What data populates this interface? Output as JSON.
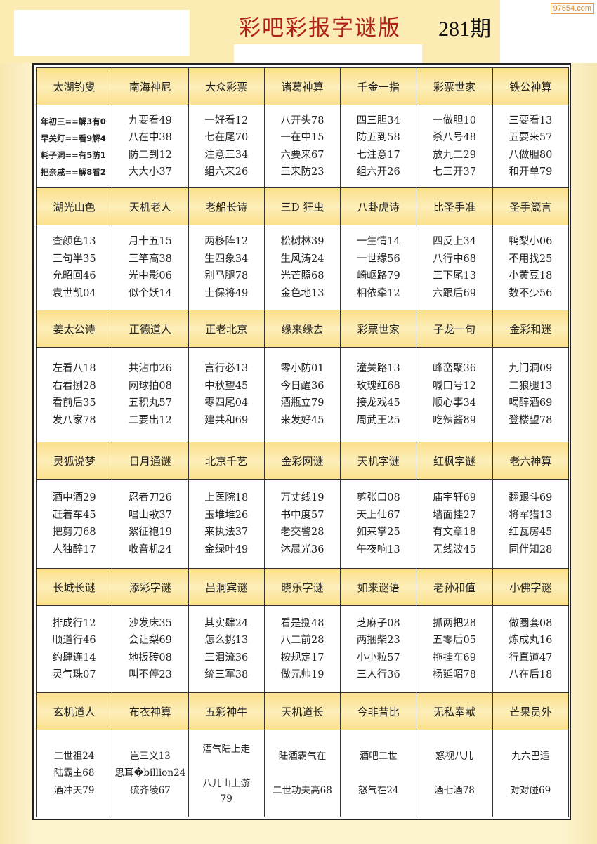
{
  "header": {
    "title": "彩吧彩报字谜版",
    "issue": "281期",
    "watermark": "97654.com"
  },
  "blocks": [
    {
      "headers": [
        "太湖钓叟",
        "南海神尼",
        "大众彩票",
        "诸葛神算",
        "千金一指",
        "彩票世家",
        "铁公神算"
      ],
      "cells": [
        [
          "年初三==解3有0",
          "早关灯==看9解4",
          "耗子洞==有5防1",
          "把亲戚==解8看2"
        ],
        [
          "九要看49",
          "八在中38",
          "防二到12",
          "大大小37"
        ],
        [
          "一好看12",
          "七在尾70",
          "注意三34",
          "组六来26"
        ],
        [
          "八开头78",
          "一在中15",
          "六要来67",
          "三来防23"
        ],
        [
          "四三胆34",
          "防五到58",
          "七注意17",
          "组六开26"
        ],
        [
          "一做胆10",
          "杀八号48",
          "放九二29",
          "七三开37"
        ],
        [
          "三要看13",
          "五要来57",
          "八做胆80",
          "和开单79"
        ]
      ]
    },
    {
      "headers": [
        "湖光山色",
        "天机老人",
        "老船长诗",
        "三D 狂虫",
        "八卦虎诗",
        "比圣手准",
        "圣手箴言"
      ],
      "cells": [
        [
          "查颜色13",
          "三句半35",
          "允昭回46",
          "袁世凯04"
        ],
        [
          "月十五15",
          "三竿高38",
          "光中影06",
          "似个妖14"
        ],
        [
          "两移阵12",
          "生四象34",
          "别马腿78",
          "士保将49"
        ],
        [
          "松树林39",
          "生风涛24",
          "光芒照68",
          "金色地13"
        ],
        [
          "一生情14",
          "一世缘56",
          "崎岖路79",
          "相依牵12"
        ],
        [
          "四反上34",
          "八行中68",
          "三下尾13",
          "六跟后69"
        ],
        [
          "鸭梨小06",
          "不用找25",
          "小黄豆18",
          "数不少56"
        ]
      ]
    },
    {
      "headers": [
        "姜太公诗",
        "正德道人",
        "正老北京",
        "缘来缘去",
        "彩票世家",
        "子龙一句",
        "金彩和迷"
      ],
      "cells": [
        [
          "左看八18",
          "右看捌28",
          "看前后35",
          "发八家78"
        ],
        [
          "共沾巾26",
          "网球拍08",
          "五积丸57",
          "二要出12"
        ],
        [
          "言行必13",
          "中秋望45",
          "零四尾04",
          "建共和69"
        ],
        [
          "零小防01",
          "今日醒36",
          "酒瓶立79",
          "来发好45"
        ],
        [
          "潼关路13",
          "玫瑰红68",
          "接龙戏45",
          "周武王25"
        ],
        [
          "峰峦聚36",
          "喊口号12",
          "顺心事34",
          "吃辣酱89"
        ],
        [
          "九门洞09",
          "二狼腿13",
          "喝醉酒69",
          "登楼望78"
        ]
      ]
    },
    {
      "headers": [
        "灵狐说梦",
        "日月通谜",
        "北京千艺",
        "金彩网谜",
        "天机字谜",
        "红枫字谜",
        "老六神算"
      ],
      "cells": [
        [
          "酒中酒29",
          "赶着车45",
          "把剪刀68",
          "人独醉17"
        ],
        [
          "忍者刀26",
          "唱山歌37",
          "絮征袍19",
          "收音机24"
        ],
        [
          "上医院18",
          "玉堆堆26",
          "来执法37",
          "金绿叶49"
        ],
        [
          "万丈线19",
          "书中度57",
          "老交警28",
          "沐晨光36"
        ],
        [
          "剪张口08",
          "天上仙67",
          "如来掌25",
          "午夜响13"
        ],
        [
          "庙宇轩69",
          "墙面挂27",
          "有文章18",
          "无线波45"
        ],
        [
          "翻跟斗69",
          "将军猎13",
          "红瓦房45",
          "同伴知28"
        ]
      ]
    },
    {
      "headers": [
        "长城长谜",
        "添彩字谜",
        "吕洞宾谜",
        "晓乐字谜",
        "如来谜语",
        "老孙和值",
        "小佛字谜"
      ],
      "cells": [
        [
          "排成行12",
          "顺道行46",
          "约肆连14",
          "灵气珠07"
        ],
        [
          "沙发床35",
          "会让梨69",
          "地扳砖08",
          "叫不停23"
        ],
        [
          "其实肆24",
          "怎么挑13",
          "三泪流36",
          "统三军38"
        ],
        [
          "看是捌48",
          "八二前28",
          "按规定17",
          "做元帅19"
        ],
        [
          "芝麻子08",
          "两捆柴23",
          "小小粒57",
          "三人行36"
        ],
        [
          "抓两把28",
          "五零后05",
          "拖挂车69",
          "杨延昭78"
        ],
        [
          "做圈套08",
          "炼成丸16",
          "行直道47",
          "八在后18"
        ]
      ]
    },
    {
      "headers": [
        "玄机道人",
        "布衣神算",
        "五彩神牛",
        "天机道长",
        "今非昔比",
        "无私奉献",
        "芒果员外"
      ],
      "cells": [
        [
          "二世祖24",
          "陆霸主68",
          "酒冲天79"
        ],
        [
          "岂三义13",
          "思耳�billion24",
          "硫齐绫67"
        ],
        [
          "酒气陆上走",
          "八儿山上游",
          "79"
        ],
        [
          "陆酒霸气在",
          "二世功夫高68"
        ],
        [
          "酒吧二世",
          "怒气在24"
        ],
        [
          "怒视八儿",
          "酒七酒78"
        ],
        [
          "九六巴适",
          "对对碰69"
        ]
      ]
    }
  ]
}
